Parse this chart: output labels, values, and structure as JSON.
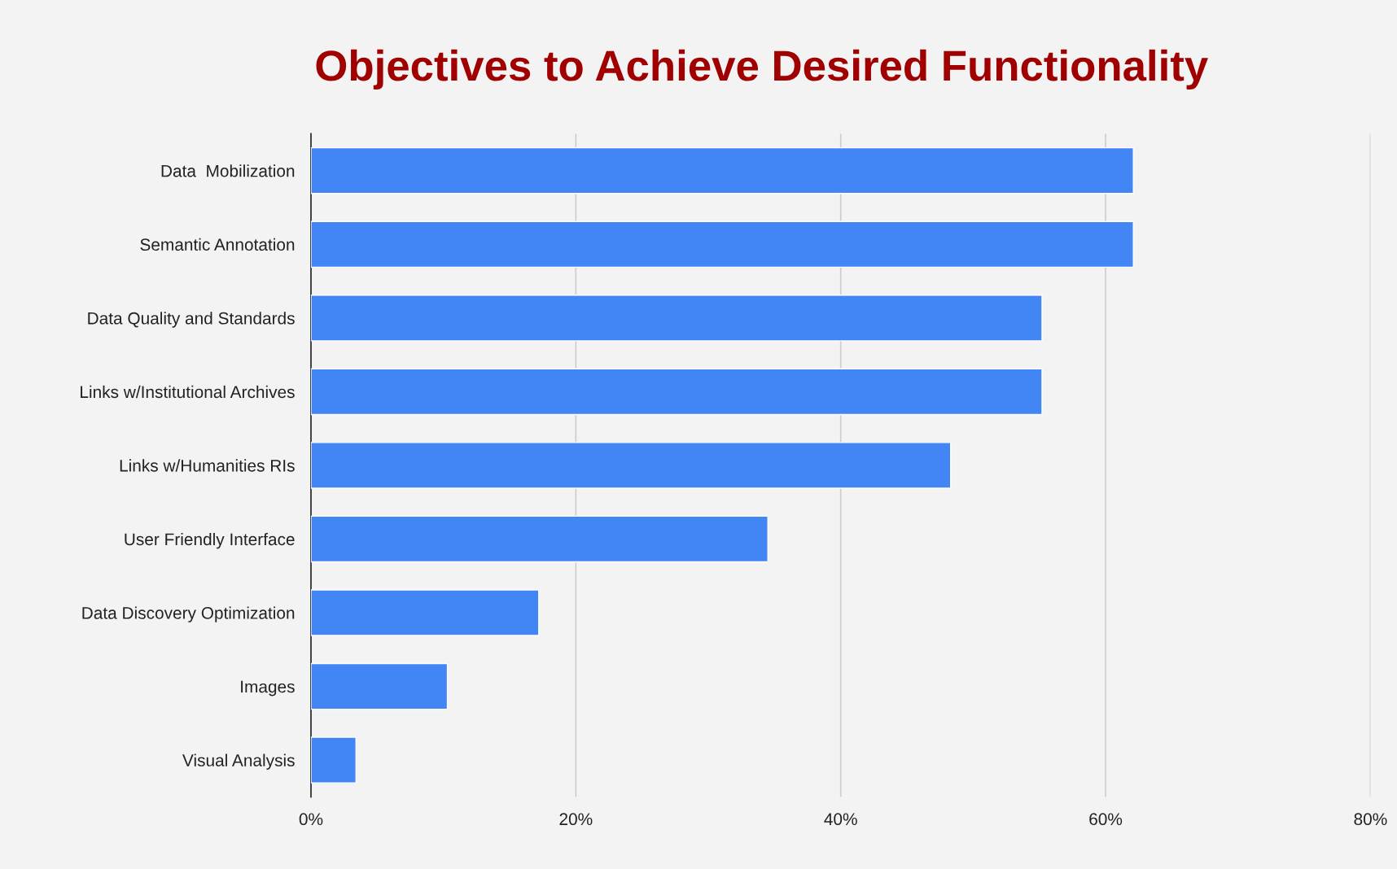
{
  "chart_data": {
    "type": "bar",
    "orientation": "horizontal",
    "title": "Objectives to Achieve Desired Functionality",
    "categories": [
      "Data  Mobilization",
      "Semantic Annotation",
      "Data Quality and Standards",
      "Links w/Institutional Archives",
      "Links w/Humanities RIs",
      "User Friendly Interface",
      "Data Discovery Optimization",
      "Images",
      "Visual Analysis"
    ],
    "values": [
      62.1,
      62.1,
      55.2,
      55.2,
      48.3,
      34.5,
      17.2,
      10.3,
      3.4
    ],
    "color": "#4285f4",
    "xlim": [
      0,
      80
    ],
    "xticks": [
      {
        "value": 0,
        "label": "0%"
      },
      {
        "value": 20,
        "label": "20%"
      },
      {
        "value": 40,
        "label": "40%"
      },
      {
        "value": 60,
        "label": "60%"
      },
      {
        "value": 80,
        "label": "80%"
      }
    ],
    "grid": "x",
    "legend": false
  }
}
